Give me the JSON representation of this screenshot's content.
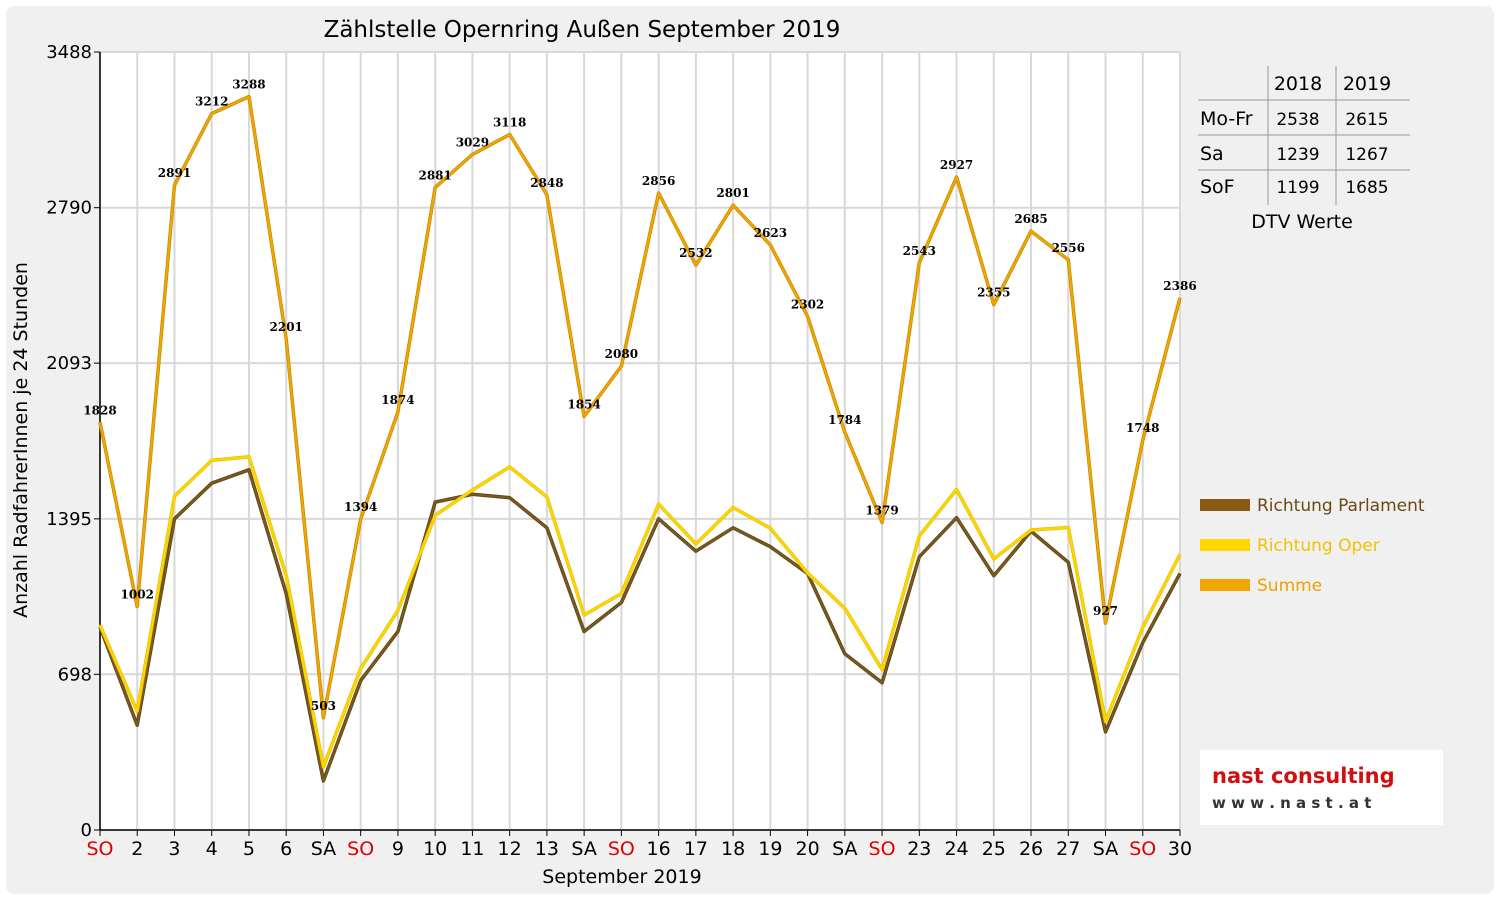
{
  "chart_data": {
    "type": "line",
    "title": "Zählstelle Opernring Außen September 2019",
    "xlabel": "September 2019",
    "ylabel": "Anzahl RadfahrerInnen je 24 Stunden",
    "yticks": [
      0,
      698,
      1395,
      2093,
      2790,
      3488
    ],
    "ylim": [
      0,
      3488
    ],
    "grid": true,
    "legend_position": "right",
    "x_labels": [
      "SO",
      "2",
      "3",
      "4",
      "5",
      "6",
      "SA",
      "SO",
      "9",
      "10",
      "11",
      "12",
      "13",
      "SA",
      "SO",
      "16",
      "17",
      "18",
      "19",
      "20",
      "SA",
      "SO",
      "23",
      "24",
      "25",
      "26",
      "27",
      "SA",
      "SO",
      "30"
    ],
    "x_label_colors": [
      "#e00000",
      "#000000",
      "#000000",
      "#000000",
      "#000000",
      "#000000",
      "#000000",
      "#e00000",
      "#000000",
      "#000000",
      "#000000",
      "#000000",
      "#000000",
      "#000000",
      "#e00000",
      "#000000",
      "#000000",
      "#000000",
      "#000000",
      "#000000",
      "#000000",
      "#e00000",
      "#000000",
      "#000000",
      "#000000",
      "#000000",
      "#000000",
      "#000000",
      "#e00000",
      "#000000"
    ],
    "series": [
      {
        "name": "Richtung Parlament",
        "color": "#7b5a1e",
        "values": [
          910,
          470,
          1395,
          1555,
          1615,
          1060,
          220,
          670,
          890,
          1470,
          1505,
          1490,
          1355,
          890,
          1020,
          1395,
          1250,
          1355,
          1270,
          1150,
          790,
          660,
          1225,
          1400,
          1140,
          1340,
          1200,
          440,
          840,
          1150
        ]
      },
      {
        "name": "Richtung Oper",
        "color": "#ffd700",
        "values": [
          918,
          532,
          1496,
          1657,
          1673,
          1141,
          283,
          724,
          984,
          1411,
          1524,
          1628,
          1493,
          964,
          1060,
          1461,
          1282,
          1446,
          1353,
          1152,
          994,
          719,
          1318,
          1527,
          1215,
          1345,
          1356,
          487,
          908,
          1236
        ]
      },
      {
        "name": "Summe",
        "color": "#f0a800",
        "values": [
          1828,
          1002,
          2891,
          3212,
          3288,
          2201,
          503,
          1394,
          1874,
          2881,
          3029,
          3118,
          2848,
          1854,
          2080,
          2856,
          2532,
          2801,
          2623,
          2302,
          1784,
          1379,
          2543,
          2927,
          2355,
          2685,
          2556,
          927,
          1748,
          2386
        ]
      }
    ]
  },
  "dtv_table": {
    "headers": [
      "",
      "2018",
      "2019"
    ],
    "rows": [
      {
        "label": "Mo-Fr",
        "v2018": "2538",
        "v2019": "2615"
      },
      {
        "label": "Sa",
        "v2018": "1239",
        "v2019": "1267"
      },
      {
        "label": "SoF",
        "v2018": "1199",
        "v2019": "1685"
      }
    ],
    "caption": "DTV Werte"
  },
  "logo": {
    "name": "nast consulting",
    "url": "w w w . n a s t . a t"
  }
}
